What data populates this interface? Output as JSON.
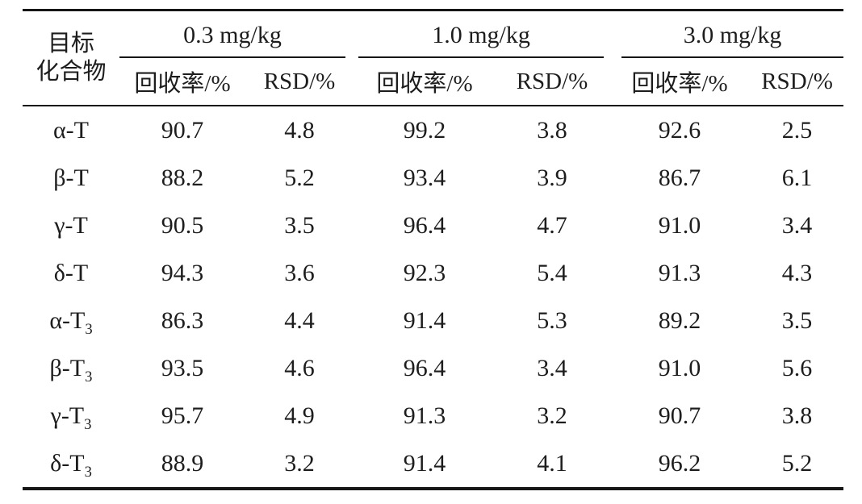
{
  "table": {
    "col1_header": {
      "line1": "目标",
      "line2": "化合物"
    },
    "groups": [
      {
        "label": "0.3 mg/kg",
        "recovery_label": "回收率/%",
        "rsd_label": "RSD/%"
      },
      {
        "label": "1.0 mg/kg",
        "recovery_label": "回收率/%",
        "rsd_label": "RSD/%"
      },
      {
        "label": "3.0 mg/kg",
        "recovery_label": "回收率/%",
        "rsd_label": "RSD/%"
      }
    ],
    "rows": [
      {
        "compound": {
          "base": "α-T",
          "sub": ""
        },
        "values": [
          "90.7",
          "4.8",
          "99.2",
          "3.8",
          "92.6",
          "2.5"
        ]
      },
      {
        "compound": {
          "base": "β-T",
          "sub": ""
        },
        "values": [
          "88.2",
          "5.2",
          "93.4",
          "3.9",
          "86.7",
          "6.1"
        ]
      },
      {
        "compound": {
          "base": "γ-T",
          "sub": ""
        },
        "values": [
          "90.5",
          "3.5",
          "96.4",
          "4.7",
          "91.0",
          "3.4"
        ]
      },
      {
        "compound": {
          "base": "δ-T",
          "sub": ""
        },
        "values": [
          "94.3",
          "3.6",
          "92.3",
          "5.4",
          "91.3",
          "4.3"
        ]
      },
      {
        "compound": {
          "base": "α-T",
          "sub": "3"
        },
        "values": [
          "86.3",
          "4.4",
          "91.4",
          "5.3",
          "89.2",
          "3.5"
        ]
      },
      {
        "compound": {
          "base": "β-T",
          "sub": "3"
        },
        "values": [
          "93.5",
          "4.6",
          "96.4",
          "3.4",
          "91.0",
          "5.6"
        ]
      },
      {
        "compound": {
          "base": "γ-T",
          "sub": "3"
        },
        "values": [
          "95.7",
          "4.9",
          "91.3",
          "3.2",
          "90.7",
          "3.8"
        ]
      },
      {
        "compound": {
          "base": "δ-T",
          "sub": "3"
        },
        "values": [
          "88.9",
          "3.2",
          "91.4",
          "4.1",
          "96.2",
          "5.2"
        ]
      }
    ]
  },
  "chart_data": {
    "type": "table",
    "columns": [
      "目标化合物",
      "0.3 mg/kg 回收率/%",
      "0.3 mg/kg RSD/%",
      "1.0 mg/kg 回收率/%",
      "1.0 mg/kg RSD/%",
      "3.0 mg/kg 回收率/%",
      "3.0 mg/kg RSD/%"
    ],
    "rows": [
      [
        "α-T",
        90.7,
        4.8,
        99.2,
        3.8,
        92.6,
        2.5
      ],
      [
        "β-T",
        88.2,
        5.2,
        93.4,
        3.9,
        86.7,
        6.1
      ],
      [
        "γ-T",
        90.5,
        3.5,
        96.4,
        4.7,
        91.0,
        3.4
      ],
      [
        "δ-T",
        94.3,
        3.6,
        92.3,
        5.4,
        91.3,
        4.3
      ],
      [
        "α-T3",
        86.3,
        4.4,
        91.4,
        5.3,
        89.2,
        3.5
      ],
      [
        "β-T3",
        93.5,
        4.6,
        96.4,
        3.4,
        91.0,
        5.6
      ],
      [
        "γ-T3",
        95.7,
        4.9,
        91.3,
        3.2,
        90.7,
        3.8
      ],
      [
        "δ-T3",
        88.9,
        3.2,
        91.4,
        4.1,
        96.2,
        5.2
      ]
    ]
  },
  "colors": {
    "text": "#1d1d1d",
    "rule": "#161616",
    "background": "#ffffff"
  }
}
